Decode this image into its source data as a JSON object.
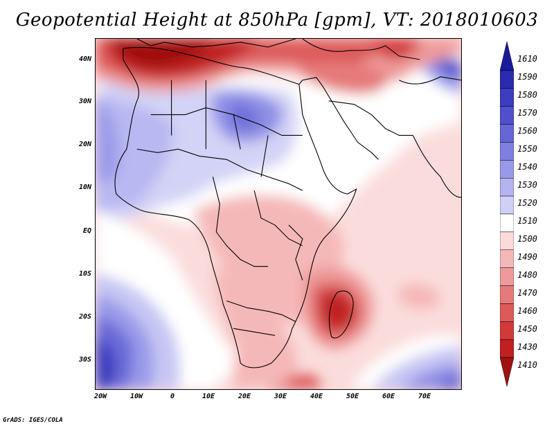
{
  "title": "Geopotential Height at 850hPa [gpm], VT: 2018010603",
  "credit": "GrADS: IGES/COLA",
  "map": {
    "lat_labels": [
      "40N",
      "30N",
      "20N",
      "10N",
      "EQ",
      "10S",
      "20S",
      "30S"
    ],
    "lon_labels": [
      "20W",
      "10W",
      "0",
      "10E",
      "20E",
      "30E",
      "40E",
      "50E",
      "60E",
      "70E"
    ]
  },
  "colorbar": {
    "levels": [
      "1610",
      "1590",
      "1580",
      "1570",
      "1560",
      "1550",
      "1540",
      "1530",
      "1520",
      "1510",
      "1500",
      "1490",
      "1480",
      "1470",
      "1460",
      "1450",
      "1430",
      "1410"
    ],
    "colors": [
      "#1a1a9c",
      "#2b2bb0",
      "#3d3dbf",
      "#5050cc",
      "#6666d6",
      "#7f7fe0",
      "#9999ea",
      "#b3b3f0",
      "#d0d0f7",
      "#ffffff",
      "#fbdada",
      "#f5b8b8",
      "#ee9a9a",
      "#e67a7a",
      "#dd5a5a",
      "#d23a3a",
      "#c02020",
      "#a01010"
    ]
  }
}
